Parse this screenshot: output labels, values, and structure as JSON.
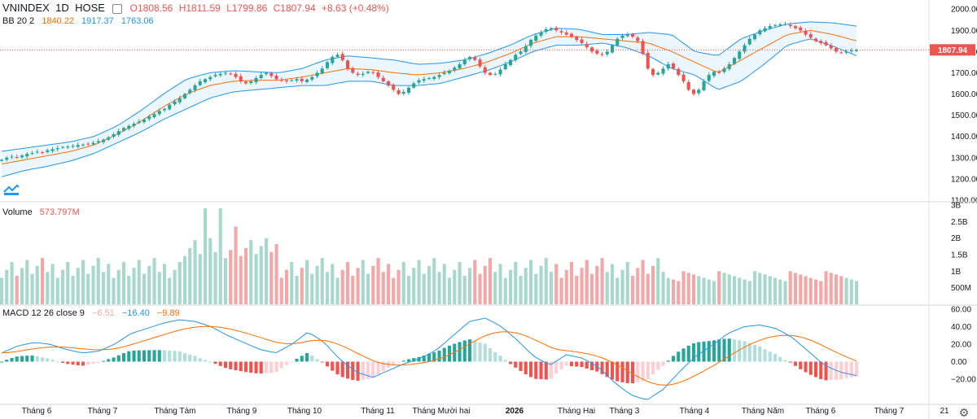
{
  "header": {
    "symbol": "VNINDEX",
    "interval": "1D",
    "exchange": "HOSE",
    "open": "O1808.56",
    "high": "H1811.59",
    "low": "L1799.86",
    "close": "C1807.94",
    "change": "+8.63 (+0.48%)",
    "eye_icon": "eye-icon"
  },
  "bb_legend": {
    "label": "BB 20 2",
    "basis": "1840.22",
    "upper": "1917.37",
    "lower": "1763.06"
  },
  "volume_legend": {
    "label": "Volume",
    "value": "573.797M"
  },
  "macd_legend": {
    "label": "MACD 12 26 close 9",
    "hist": "−6.51",
    "macd": "−16.40",
    "signal": "−9.89"
  },
  "price_tag": "1807.94",
  "colors": {
    "up": "#26a69a",
    "down": "#ef5350",
    "vol_up": "#a8d8cc",
    "vol_down": "#f5a7a8",
    "bb_band": "#2196f3",
    "bb_basis": "#ff6d00",
    "bb_fill": "#e3f2fd",
    "macd": "#2196f3",
    "signal": "#ff6d00"
  },
  "time_labels": [
    "Tháng 6",
    "Tháng 7",
    "Tháng Tám",
    "Tháng 9",
    "Tháng 10",
    "Tháng 11",
    "Tháng Mười hai",
    "2026",
    "Tháng Hai",
    "Tháng 3",
    "Tháng 4",
    "Tháng Năm",
    "Tháng 6",
    "Tháng 7",
    "21"
  ],
  "chart_data": [
    {
      "type": "candlestick",
      "pane": "price",
      "y_ticks": [
        1100,
        1200,
        1300,
        1400,
        1500,
        1600,
        1700,
        1800,
        1900,
        2000
      ],
      "y_tick_labels": [
        "1100.00",
        "1200.00",
        "1300.00",
        "1400.00",
        "1500.00",
        "1600.00",
        "1700.00",
        "1800.00",
        "1900.00",
        "2000.00"
      ],
      "ylim": [
        1100,
        2020
      ],
      "last_close": 1807.94,
      "close_series": [
        1290,
        1300,
        1305,
        1300,
        1310,
        1318,
        1322,
        1328,
        1325,
        1335,
        1340,
        1345,
        1350,
        1352,
        1355,
        1360,
        1362,
        1365,
        1370,
        1378,
        1385,
        1395,
        1410,
        1425,
        1440,
        1450,
        1460,
        1470,
        1480,
        1495,
        1505,
        1520,
        1530,
        1550,
        1565,
        1580,
        1600,
        1620,
        1640,
        1660,
        1670,
        1680,
        1690,
        1695,
        1700,
        1695,
        1680,
        1660,
        1650,
        1660,
        1675,
        1690,
        1700,
        1685,
        1670,
        1665,
        1660,
        1665,
        1670,
        1660,
        1668,
        1680,
        1700,
        1720,
        1750,
        1775,
        1785,
        1760,
        1720,
        1700,
        1690,
        1695,
        1705,
        1700,
        1680,
        1660,
        1640,
        1620,
        1600,
        1610,
        1630,
        1650,
        1665,
        1670,
        1675,
        1680,
        1690,
        1700,
        1710,
        1725,
        1740,
        1760,
        1775,
        1760,
        1730,
        1700,
        1690,
        1695,
        1715,
        1740,
        1760,
        1785,
        1800,
        1825,
        1855,
        1875,
        1890,
        1905,
        1910,
        1900,
        1890,
        1880,
        1870,
        1855,
        1840,
        1820,
        1800,
        1790,
        1785,
        1800,
        1830,
        1860,
        1875,
        1880,
        1870,
        1850,
        1790,
        1720,
        1690,
        1700,
        1720,
        1740,
        1720,
        1690,
        1660,
        1620,
        1600,
        1620,
        1660,
        1690,
        1705,
        1700,
        1720,
        1740,
        1770,
        1800,
        1830,
        1860,
        1880,
        1900,
        1910,
        1920,
        1925,
        1928,
        1930,
        1920,
        1910,
        1900,
        1880,
        1865,
        1850,
        1840,
        1830,
        1815,
        1800,
        1795,
        1800,
        1805,
        1808
      ]
    },
    {
      "type": "line",
      "pane": "bollinger",
      "series_keys": [
        "basis",
        "upper",
        "lower"
      ],
      "upper": [
        1330,
        1345,
        1360,
        1375,
        1400,
        1450,
        1520,
        1600,
        1670,
        1700,
        1710,
        1705,
        1700,
        1720,
        1760,
        1780,
        1770,
        1760,
        1740,
        1745,
        1760,
        1790,
        1830,
        1880,
        1910,
        1905,
        1880,
        1880,
        1890,
        1880,
        1800,
        1780,
        1860,
        1900,
        1930,
        1940,
        1935,
        1920
      ],
      "basis": [
        1270,
        1290,
        1310,
        1330,
        1360,
        1410,
        1470,
        1540,
        1600,
        1640,
        1660,
        1665,
        1665,
        1680,
        1700,
        1720,
        1715,
        1700,
        1690,
        1700,
        1720,
        1750,
        1790,
        1840,
        1870,
        1870,
        1860,
        1850,
        1840,
        1800,
        1750,
        1700,
        1760,
        1820,
        1880,
        1900,
        1880,
        1850
      ],
      "lower": [
        1210,
        1240,
        1260,
        1285,
        1320,
        1370,
        1420,
        1480,
        1530,
        1580,
        1610,
        1620,
        1630,
        1640,
        1640,
        1660,
        1660,
        1640,
        1640,
        1650,
        1680,
        1710,
        1750,
        1800,
        1830,
        1830,
        1840,
        1820,
        1780,
        1720,
        1690,
        1620,
        1660,
        1740,
        1830,
        1860,
        1825,
        1780
      ]
    },
    {
      "type": "bar",
      "pane": "volume",
      "y_ticks": [
        500,
        1000,
        1500,
        2000,
        2500,
        3000
      ],
      "y_tick_labels": [
        "500M",
        "1B",
        "1.5B",
        "2B",
        "2.5B",
        "3B"
      ],
      "ylim": [
        0,
        3050
      ],
      "last_value": 573.797
    },
    {
      "type": "line",
      "pane": "macd",
      "y_ticks": [
        -20,
        0,
        20,
        40,
        60
      ],
      "y_tick_labels": [
        "−20.00",
        "0.00",
        "20.00",
        "40.00",
        "60.00"
      ],
      "ylim": [
        -48,
        62
      ],
      "macd": [
        10,
        18,
        22,
        20,
        14,
        10,
        12,
        20,
        32,
        38,
        44,
        48,
        46,
        40,
        30,
        22,
        14,
        10,
        20,
        34,
        22,
        2,
        -12,
        -18,
        -10,
        -2,
        4,
        14,
        30,
        46,
        50,
        40,
        24,
        6,
        -4,
        8,
        4,
        -6,
        -24,
        -38,
        -44,
        -32,
        -12,
        6,
        18,
        32,
        40,
        42,
        38,
        28,
        12,
        -4,
        -12,
        -16
      ]
    },
    {
      "type": "bar",
      "pane": "macd_histogram"
    }
  ]
}
